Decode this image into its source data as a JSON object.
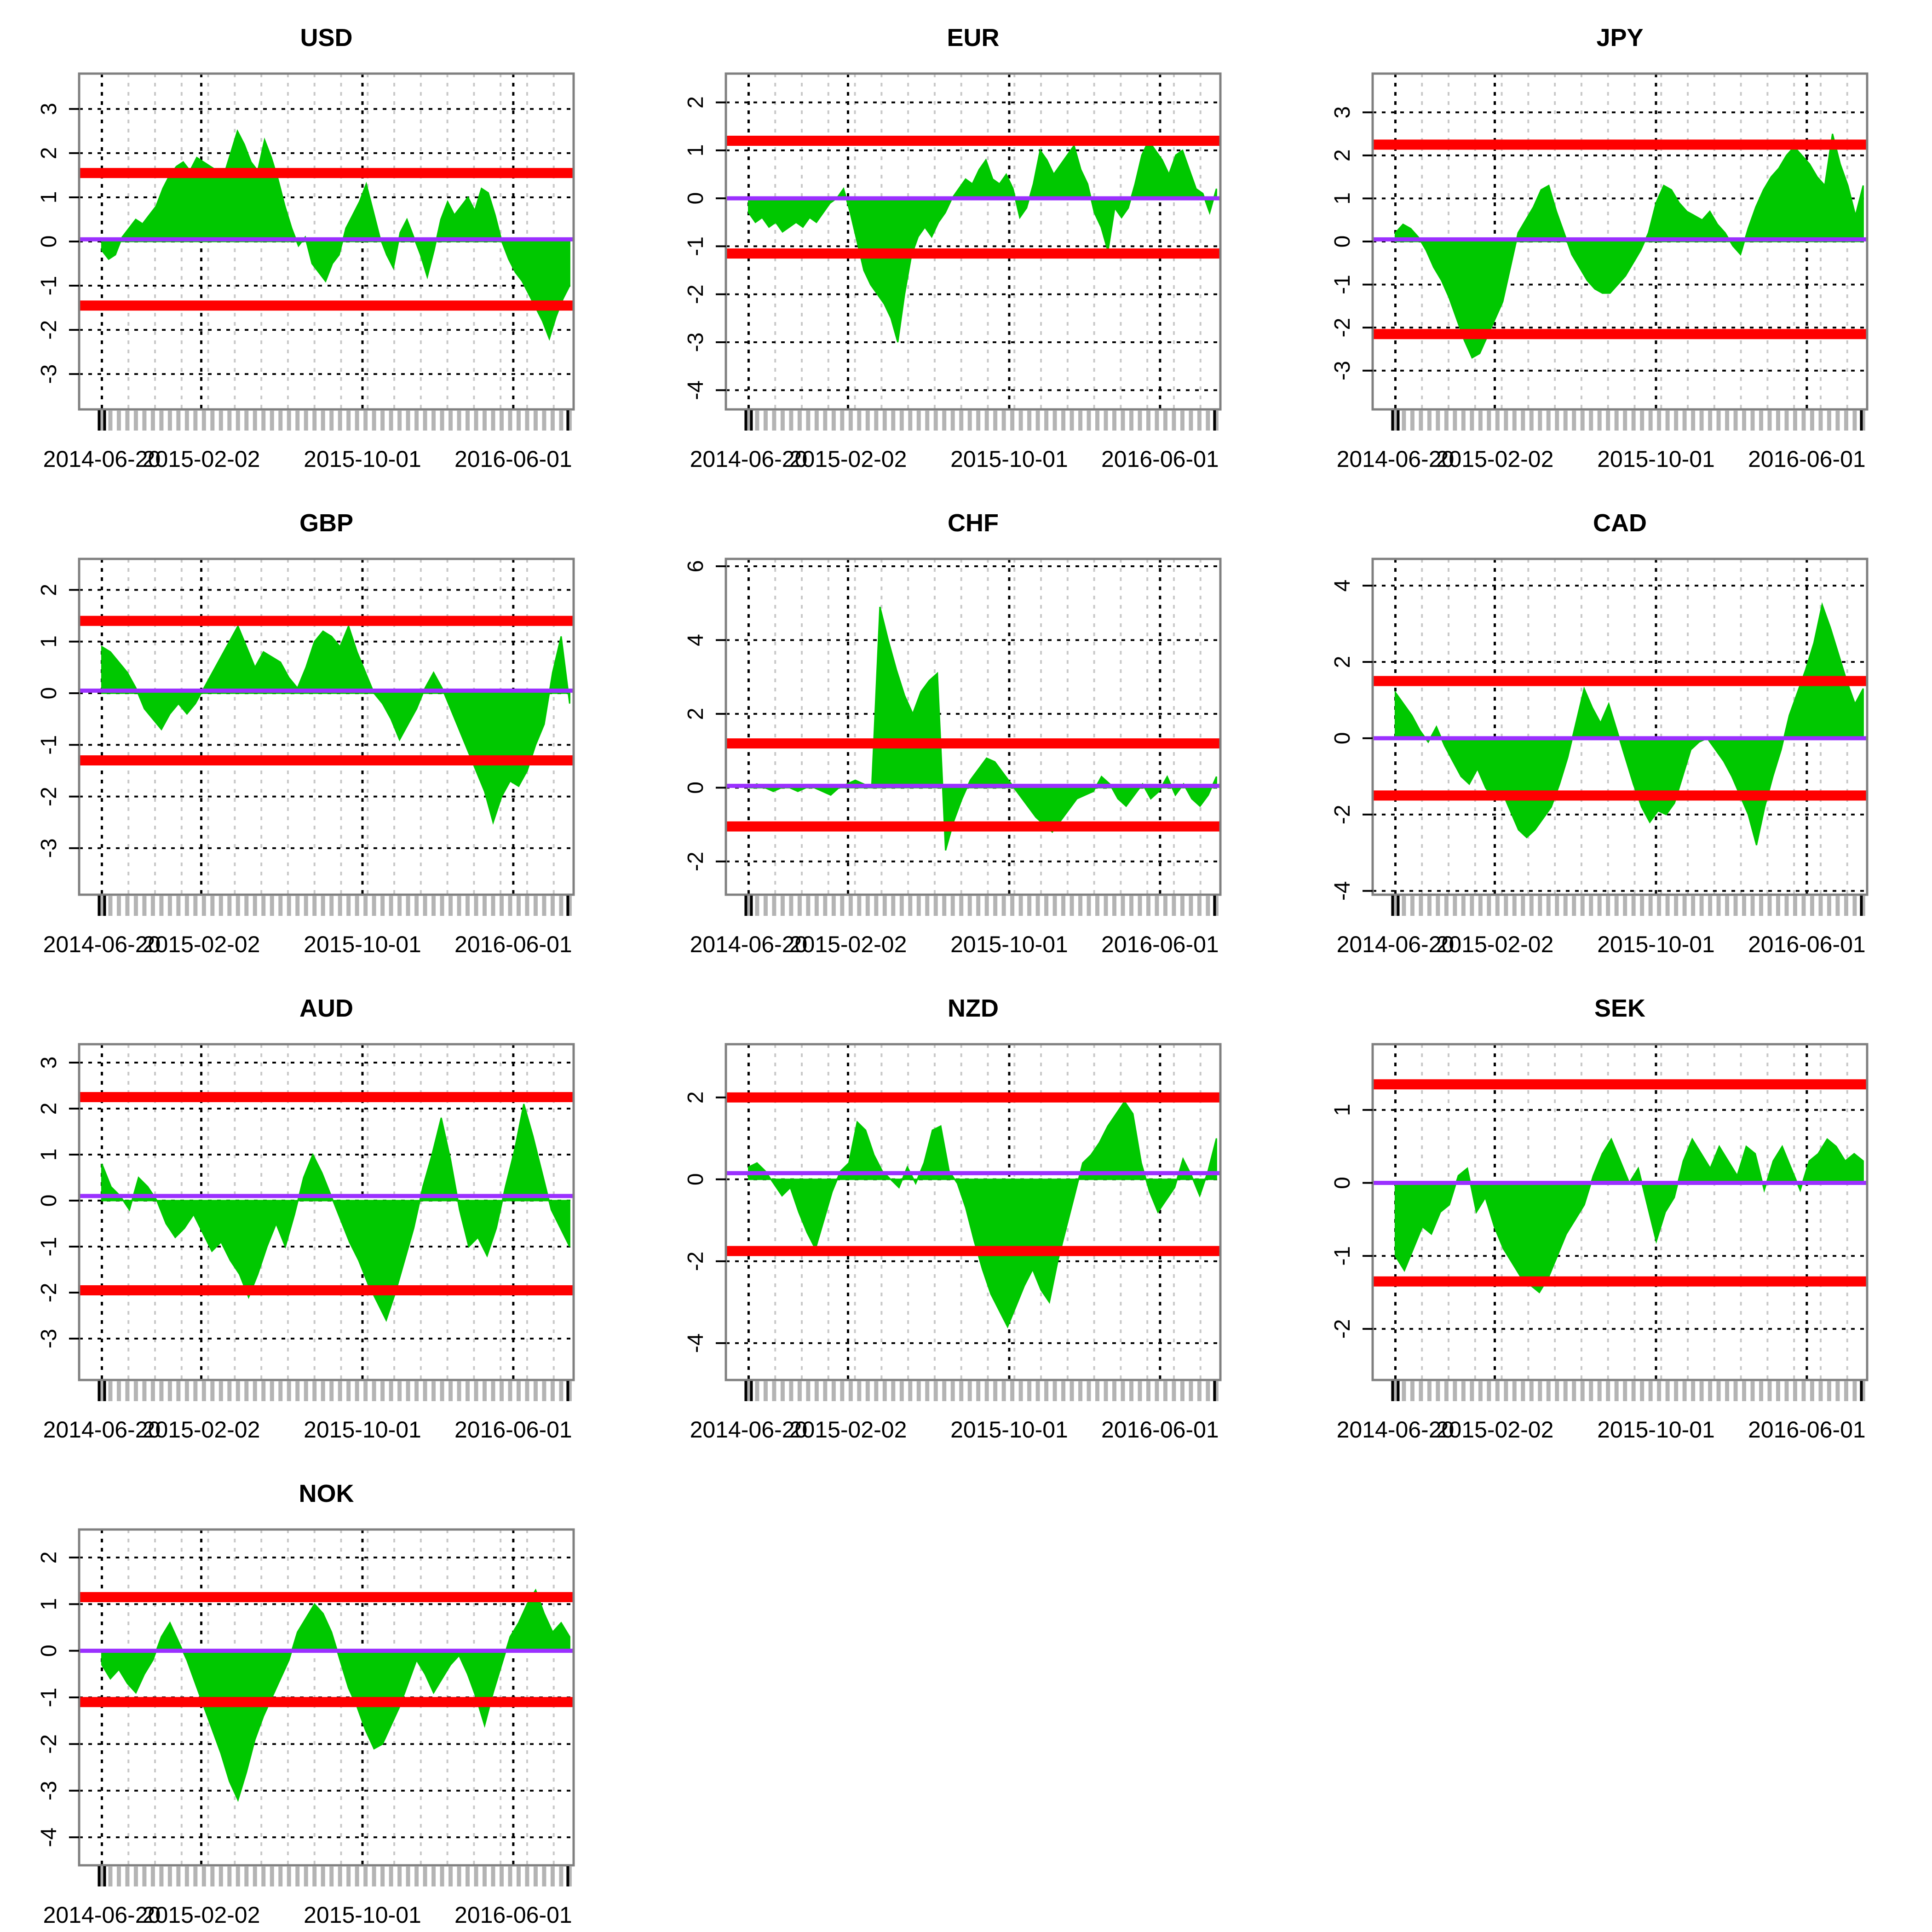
{
  "figure": {
    "colors": {
      "area": "#00c800",
      "mean_line": "#9b30ff",
      "band_line": "#ff0000",
      "frame": "#808080",
      "grid_major": "#000000",
      "grid_minor": "#c8c8c8",
      "rug": "#b4b4b4"
    }
  },
  "chart_data": [
    {
      "type": "area",
      "title": "USD",
      "yticks": [
        "3",
        "2",
        "1",
        "0",
        "-1",
        "-2",
        "-3"
      ],
      "ylim": [
        -3.8,
        3.8
      ],
      "xticks": [
        "2014-06-20",
        "2015-02-02",
        "2015-10-01",
        "2016-06-01"
      ],
      "mean": 0.05,
      "upper": 1.55,
      "lower": -1.45,
      "series": [
        -0.2,
        -0.4,
        -0.3,
        0.1,
        0.3,
        0.5,
        0.4,
        0.6,
        0.8,
        1.2,
        1.5,
        1.7,
        1.8,
        1.6,
        1.9,
        1.8,
        1.7,
        1.6,
        1.5,
        2.0,
        2.5,
        2.2,
        1.8,
        1.6,
        2.3,
        1.9,
        1.4,
        0.8,
        0.3,
        -0.1,
        0.1,
        -0.5,
        -0.7,
        -0.9,
        -0.5,
        -0.3,
        0.3,
        0.6,
        0.9,
        1.3,
        0.7,
        0.1,
        -0.3,
        -0.6,
        0.2,
        0.5,
        0.1,
        -0.3,
        -0.8,
        -0.2,
        0.5,
        0.9,
        0.6,
        0.8,
        1.0,
        0.7,
        1.2,
        1.1,
        0.6,
        0.0,
        -0.4,
        -0.7,
        -0.9,
        -1.2,
        -1.5,
        -1.8,
        -2.2,
        -1.7,
        -1.3,
        -1.0
      ]
    },
    {
      "type": "area",
      "title": "EUR",
      "yticks": [
        "2",
        "1",
        "0",
        "-1",
        "-2",
        "-3",
        "-4"
      ],
      "ylim": [
        -4.4,
        2.6
      ],
      "xticks": [
        "2014-06-20",
        "2015-02-02",
        "2015-10-01",
        "2016-06-01"
      ],
      "mean": 0.0,
      "upper": 1.2,
      "lower": -1.15,
      "series": [
        -0.3,
        -0.5,
        -0.4,
        -0.6,
        -0.5,
        -0.7,
        -0.6,
        -0.5,
        -0.6,
        -0.4,
        -0.5,
        -0.3,
        -0.1,
        0.0,
        0.2,
        -0.3,
        -0.9,
        -1.5,
        -1.8,
        -2.0,
        -2.2,
        -2.5,
        -3.0,
        -2.0,
        -1.2,
        -0.8,
        -0.6,
        -0.8,
        -0.5,
        -0.3,
        0.0,
        0.2,
        0.4,
        0.3,
        0.6,
        0.8,
        0.4,
        0.3,
        0.5,
        0.2,
        -0.4,
        -0.2,
        0.3,
        1.0,
        0.8,
        0.5,
        0.7,
        0.9,
        1.1,
        0.6,
        0.3,
        -0.3,
        -0.6,
        -1.1,
        -0.2,
        -0.4,
        -0.2,
        0.3,
        0.9,
        1.2,
        1.0,
        0.8,
        0.5,
        0.9,
        1.0,
        0.6,
        0.2,
        0.1,
        -0.3,
        0.2
      ]
    },
    {
      "type": "area",
      "title": "JPY",
      "yticks": [
        "3",
        "2",
        "1",
        "0",
        "-1",
        "-2",
        "-3"
      ],
      "ylim": [
        -3.9,
        3.9
      ],
      "xticks": [
        "2014-06-20",
        "2015-02-02",
        "2015-10-01",
        "2016-06-01"
      ],
      "mean": 0.05,
      "upper": 2.25,
      "lower": -2.15,
      "series": [
        0.2,
        0.4,
        0.3,
        0.1,
        -0.2,
        -0.6,
        -0.9,
        -1.3,
        -1.8,
        -2.3,
        -2.7,
        -2.6,
        -2.2,
        -1.8,
        -1.4,
        -0.6,
        0.2,
        0.5,
        0.8,
        1.2,
        1.3,
        0.7,
        0.2,
        -0.3,
        -0.6,
        -0.9,
        -1.1,
        -1.2,
        -1.2,
        -1.0,
        -0.8,
        -0.5,
        -0.2,
        0.2,
        0.9,
        1.3,
        1.2,
        0.9,
        0.7,
        0.6,
        0.5,
        0.7,
        0.4,
        0.2,
        -0.1,
        -0.3,
        0.3,
        0.8,
        1.2,
        1.5,
        1.7,
        2.0,
        2.2,
        2.0,
        1.8,
        1.5,
        1.3,
        2.5,
        1.8,
        1.3,
        0.6,
        1.3
      ]
    },
    {
      "type": "area",
      "title": "GBP",
      "yticks": [
        "2",
        "1",
        "0",
        "-1",
        "-2",
        "-3"
      ],
      "ylim": [
        -3.9,
        2.6
      ],
      "xticks": [
        "2014-06-20",
        "2015-02-02",
        "2015-10-01",
        "2016-06-01"
      ],
      "mean": 0.05,
      "upper": 1.4,
      "lower": -1.3,
      "series": [
        0.9,
        0.8,
        0.6,
        0.4,
        0.1,
        -0.3,
        -0.5,
        -0.7,
        -0.4,
        -0.2,
        -0.4,
        -0.2,
        0.1,
        0.4,
        0.7,
        1.0,
        1.3,
        0.9,
        0.5,
        0.8,
        0.7,
        0.6,
        0.3,
        0.1,
        0.5,
        1.0,
        1.2,
        1.1,
        0.9,
        1.3,
        0.8,
        0.4,
        0.0,
        -0.2,
        -0.5,
        -0.9,
        -0.6,
        -0.3,
        0.1,
        0.4,
        0.1,
        -0.3,
        -0.7,
        -1.1,
        -1.5,
        -1.9,
        -2.5,
        -2.0,
        -1.7,
        -1.8,
        -1.5,
        -1.0,
        -0.6,
        0.4,
        1.1,
        -0.2
      ]
    },
    {
      "type": "area",
      "title": "CHF",
      "yticks": [
        "6",
        "4",
        "2",
        "0",
        "-2"
      ],
      "ylim": [
        -2.9,
        6.2
      ],
      "xticks": [
        "2014-06-20",
        "2015-02-02",
        "2015-10-01",
        "2016-06-01"
      ],
      "mean": 0.05,
      "upper": 1.2,
      "lower": -1.05,
      "series": [
        0.0,
        0.1,
        0.0,
        -0.1,
        0.0,
        0.0,
        -0.1,
        0.0,
        0.0,
        -0.1,
        -0.2,
        0.0,
        0.1,
        0.2,
        0.1,
        0.0,
        4.9,
        4.0,
        3.2,
        2.5,
        2.0,
        2.6,
        2.9,
        3.1,
        -1.7,
        -0.9,
        -0.3,
        0.2,
        0.5,
        0.8,
        0.7,
        0.4,
        0.1,
        -0.2,
        -0.5,
        -0.8,
        -1.0,
        -1.2,
        -0.9,
        -0.6,
        -0.3,
        -0.2,
        -0.1,
        0.3,
        0.1,
        -0.3,
        -0.5,
        -0.2,
        0.1,
        -0.3,
        -0.1,
        0.3,
        -0.2,
        0.1,
        -0.3,
        -0.5,
        -0.2,
        0.3
      ]
    },
    {
      "type": "area",
      "title": "CAD",
      "yticks": [
        "4",
        "2",
        "0",
        "-2",
        "-4"
      ],
      "ylim": [
        -4.1,
        4.7
      ],
      "xticks": [
        "2014-06-20",
        "2015-02-02",
        "2015-10-01",
        "2016-06-01"
      ],
      "mean": 0.0,
      "upper": 1.5,
      "lower": -1.5,
      "series": [
        1.2,
        0.9,
        0.6,
        0.2,
        -0.1,
        0.3,
        -0.2,
        -0.6,
        -1.0,
        -1.2,
        -0.8,
        -1.3,
        -1.6,
        -1.4,
        -1.9,
        -2.4,
        -2.6,
        -2.4,
        -2.1,
        -1.8,
        -1.2,
        -0.5,
        0.4,
        1.3,
        0.8,
        0.4,
        0.9,
        0.2,
        -0.5,
        -1.2,
        -1.8,
        -2.2,
        -1.9,
        -2.0,
        -1.7,
        -1.0,
        -0.3,
        -0.1,
        0.0,
        -0.3,
        -0.6,
        -1.0,
        -1.5,
        -2.0,
        -2.8,
        -1.8,
        -1.0,
        -0.3,
        0.6,
        1.2,
        1.8,
        2.5,
        3.5,
        2.9,
        2.2,
        1.5,
        0.9,
        1.3
      ]
    },
    {
      "type": "area",
      "title": "AUD",
      "yticks": [
        "3",
        "2",
        "1",
        "0",
        "-1",
        "-2",
        "-3"
      ],
      "ylim": [
        -3.9,
        3.4
      ],
      "xticks": [
        "2014-06-20",
        "2015-02-02",
        "2015-10-01",
        "2016-06-01"
      ],
      "mean": 0.1,
      "upper": 2.25,
      "lower": -1.95,
      "series": [
        0.8,
        0.3,
        0.1,
        -0.2,
        0.5,
        0.3,
        0.0,
        -0.5,
        -0.8,
        -0.6,
        -0.3,
        -0.7,
        -1.1,
        -0.9,
        -1.3,
        -1.6,
        -2.1,
        -1.6,
        -1.0,
        -0.5,
        -1.0,
        -0.3,
        0.5,
        1.0,
        0.6,
        0.1,
        -0.4,
        -0.9,
        -1.3,
        -1.8,
        -2.2,
        -2.6,
        -2.0,
        -1.3,
        -0.6,
        0.3,
        1.0,
        1.8,
        0.9,
        -0.2,
        -1.0,
        -0.8,
        -1.2,
        -0.6,
        0.3,
        1.1,
        2.1,
        1.4,
        0.6,
        -0.2,
        -0.6,
        -1.0
      ]
    },
    {
      "type": "area",
      "title": "NZD",
      "yticks": [
        "2",
        "0",
        "-2",
        "-4"
      ],
      "ylim": [
        -4.9,
        3.3
      ],
      "xticks": [
        "2014-06-20",
        "2015-02-02",
        "2015-10-01",
        "2016-06-01"
      ],
      "mean": 0.15,
      "upper": 2.0,
      "lower": -1.75,
      "series": [
        0.3,
        0.4,
        0.2,
        -0.1,
        -0.4,
        -0.2,
        -0.8,
        -1.3,
        -1.7,
        -1.0,
        -0.3,
        0.2,
        0.4,
        1.4,
        1.2,
        0.6,
        0.2,
        0.0,
        -0.2,
        0.3,
        -0.1,
        0.4,
        1.2,
        1.3,
        0.2,
        -0.1,
        -0.7,
        -1.5,
        -2.2,
        -2.8,
        -3.2,
        -3.6,
        -3.1,
        -2.6,
        -2.2,
        -2.7,
        -3.0,
        -2.0,
        -1.2,
        -0.4,
        0.4,
        0.6,
        0.9,
        1.3,
        1.6,
        1.9,
        1.6,
        0.4,
        -0.3,
        -0.8,
        -0.5,
        -0.2,
        0.5,
        0.1,
        -0.4,
        0.2,
        1.0
      ]
    },
    {
      "type": "area",
      "title": "SEK",
      "yticks": [
        "1",
        "0",
        "-1",
        "-2"
      ],
      "ylim": [
        -2.7,
        1.9
      ],
      "xticks": [
        "2014-06-20",
        "2015-02-02",
        "2015-10-01",
        "2016-06-01"
      ],
      "mean": 0.0,
      "upper": 1.35,
      "lower": -1.35,
      "series": [
        -1.0,
        -1.2,
        -0.9,
        -0.6,
        -0.7,
        -0.4,
        -0.3,
        0.1,
        0.2,
        -0.4,
        -0.2,
        -0.6,
        -0.9,
        -1.1,
        -1.3,
        -1.4,
        -1.5,
        -1.3,
        -1.0,
        -0.7,
        -0.5,
        -0.3,
        0.1,
        0.4,
        0.6,
        0.3,
        0.0,
        0.2,
        -0.3,
        -0.8,
        -0.4,
        -0.2,
        0.3,
        0.6,
        0.4,
        0.2,
        0.5,
        0.3,
        0.1,
        0.5,
        0.4,
        -0.1,
        0.3,
        0.5,
        0.2,
        -0.1,
        0.3,
        0.4,
        0.6,
        0.5,
        0.3,
        0.4,
        0.3
      ]
    },
    {
      "type": "area",
      "title": "NOK",
      "yticks": [
        "2",
        "1",
        "0",
        "-1",
        "-2",
        "-3",
        "-4"
      ],
      "ylim": [
        -4.6,
        2.6
      ],
      "xticks": [
        "2014-06-20",
        "2015-02-02",
        "2015-10-01",
        "2016-06-01"
      ],
      "mean": 0.0,
      "upper": 1.15,
      "lower": -1.1,
      "series": [
        -0.3,
        -0.6,
        -0.4,
        -0.7,
        -0.9,
        -0.5,
        -0.2,
        0.3,
        0.6,
        0.2,
        -0.2,
        -0.7,
        -1.2,
        -1.7,
        -2.2,
        -2.8,
        -3.2,
        -2.6,
        -1.9,
        -1.4,
        -1.0,
        -0.6,
        -0.2,
        0.4,
        0.7,
        1.0,
        0.8,
        0.4,
        -0.2,
        -0.8,
        -1.2,
        -1.7,
        -2.1,
        -2.0,
        -1.6,
        -1.2,
        -0.7,
        -0.2,
        -0.5,
        -0.9,
        -0.6,
        -0.3,
        -0.1,
        -0.5,
        -1.0,
        -1.6,
        -0.9,
        -0.3,
        0.3,
        0.6,
        1.0,
        1.3,
        0.8,
        0.4,
        0.6,
        0.3
      ]
    }
  ]
}
